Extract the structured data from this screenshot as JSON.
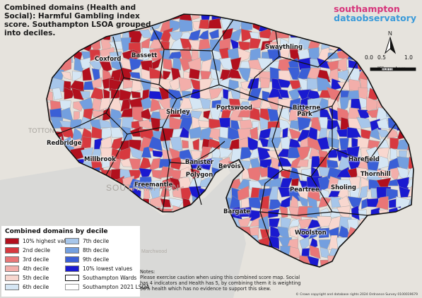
{
  "title": "Combined domains (Health and Social): Harmful Gambling index score. Southampton LSOA grouped into deciles.",
  "logo": {
    "part1": "southampton",
    "part2": "dataobservatory"
  },
  "north_label": "N",
  "scale": {
    "ticks": [
      "0.0",
      "0.5",
      "1.0"
    ],
    "unit": "Kilometers"
  },
  "wards": [
    {
      "name": "Bassett"
    },
    {
      "name": "Swaythling"
    },
    {
      "name": "Coxford"
    },
    {
      "name": "Shirley"
    },
    {
      "name": "Portswood"
    },
    {
      "name": "Bitterne Park"
    },
    {
      "name": "Redbridge"
    },
    {
      "name": "Millbrook"
    },
    {
      "name": "Banister & Polygon"
    },
    {
      "name": "Bevois"
    },
    {
      "name": "Harefield"
    },
    {
      "name": "Freemantle"
    },
    {
      "name": "Thornhill"
    },
    {
      "name": "Peartree"
    },
    {
      "name": "Sholing"
    },
    {
      "name": "Bargate"
    },
    {
      "name": "Woolston"
    }
  ],
  "background_labels": [
    "TOTTON",
    "SOUTHAMPTON",
    "Marchwood"
  ],
  "legend": {
    "title": "Combined domains by decile",
    "items": [
      {
        "label": "10% highest values",
        "color": "#b2101e"
      },
      {
        "label": "2nd decile",
        "color": "#d7393f"
      },
      {
        "label": "3rd decile",
        "color": "#e97677"
      },
      {
        "label": "4th decile",
        "color": "#f3aeaa"
      },
      {
        "label": "5th decile",
        "color": "#f8d7cf"
      },
      {
        "label": "6th decile",
        "color": "#d5e6f4"
      },
      {
        "label": "7th decile",
        "color": "#a7c6ea"
      },
      {
        "label": "8th decile",
        "color": "#739fdf"
      },
      {
        "label": "9th decile",
        "color": "#3a5fd6"
      },
      {
        "label": "10% lowest values",
        "color": "#1a1ad0"
      },
      {
        "label": "Southampton Wards",
        "color": "#ffffff"
      },
      {
        "label": "Southampton 2021 LSOA",
        "color": "#ffffff"
      }
    ]
  },
  "notes": "Notes:\nPlease exercise caution when using this combined score map. Social has 4 indicators and Health has 5, by combining them it is weighting 56% health which has no evidence to support this skew.",
  "copyright": "© Crown copyright and database rights 2024 Ordnance Survey 0100019679"
}
